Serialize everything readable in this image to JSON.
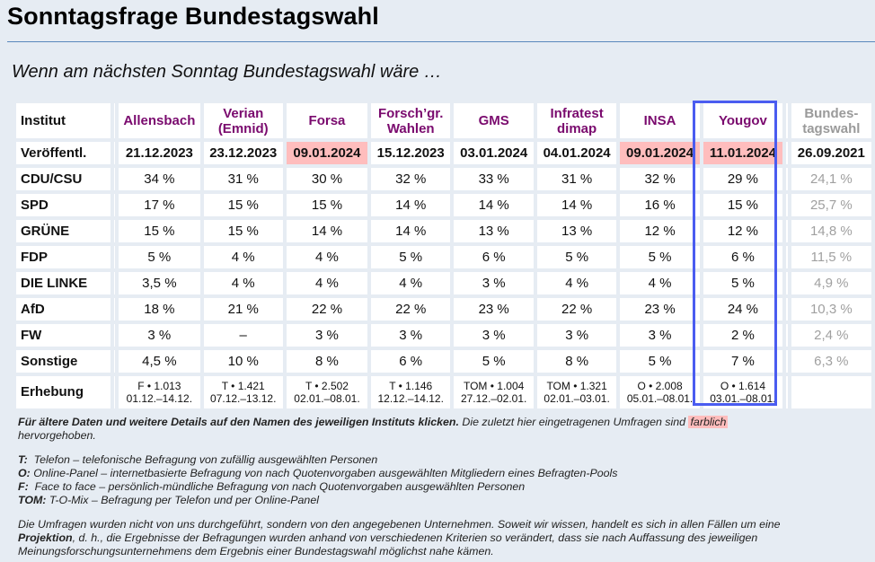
{
  "title": "Sonntagsfrage Bundestagswahl",
  "subtitle": "Wenn am nächsten Sonntag Bundestagswahl wäre …",
  "table": {
    "corner_label": "Institut",
    "date_label": "Veröffentl.",
    "survey_label": "Erhebung",
    "institutes": [
      {
        "name": "Allensbach",
        "date": "21.12.2023",
        "highlight": false,
        "method": "F • 1.013",
        "period": "01.12.–14.12."
      },
      {
        "name": "Verian (Emnid)",
        "line1": "Verian",
        "line2": "(Emnid)",
        "date": "23.12.2023",
        "highlight": false,
        "method": "T • 1.421",
        "period": "07.12.–13.12."
      },
      {
        "name": "Forsa",
        "date": "09.01.2024",
        "highlight": true,
        "method": "T • 2.502",
        "period": "02.01.–08.01."
      },
      {
        "name": "Forsch'gr. Wahlen",
        "line1": "Forsch’gr.",
        "line2": "Wahlen",
        "date": "15.12.2023",
        "highlight": false,
        "method": "T • 1.146",
        "period": "12.12.–14.12."
      },
      {
        "name": "GMS",
        "date": "03.01.2024",
        "highlight": false,
        "method": "TOM • 1.004",
        "period": "27.12.–02.01."
      },
      {
        "name": "Infratest dimap",
        "line1": "Infratest",
        "line2": "dimap",
        "date": "04.01.2024",
        "highlight": false,
        "method": "TOM • 1.321",
        "period": "02.01.–03.01."
      },
      {
        "name": "INSA",
        "date": "09.01.2024",
        "highlight": true,
        "method": "O • 2.008",
        "period": "05.01.–08.01."
      },
      {
        "name": "Yougov",
        "date": "11.01.2024",
        "highlight": true,
        "method": "O • 1.614",
        "period": "03.01.–08.01.",
        "selected": true
      }
    ],
    "election": {
      "line1": "Bundes-",
      "line2": "tagswahl",
      "date": "26.09.2021"
    },
    "parties": [
      {
        "name": "CDU/CSU",
        "values": [
          "34 %",
          "31 %",
          "30 %",
          "32 %",
          "33 %",
          "31 %",
          "32 %",
          "29 %"
        ],
        "election": "24,1 %"
      },
      {
        "name": "SPD",
        "values": [
          "17 %",
          "15 %",
          "15 %",
          "14 %",
          "14 %",
          "14 %",
          "16 %",
          "15 %"
        ],
        "election": "25,7 %"
      },
      {
        "name": "GRÜNE",
        "values": [
          "15 %",
          "15 %",
          "14 %",
          "14 %",
          "13 %",
          "13 %",
          "12 %",
          "12 %"
        ],
        "election": "14,8 %"
      },
      {
        "name": "FDP",
        "values": [
          "5 %",
          "4 %",
          "4 %",
          "5 %",
          "6 %",
          "5 %",
          "5 %",
          "6 %"
        ],
        "election": "11,5 %"
      },
      {
        "name": "DIE LINKE",
        "values": [
          "3,5 %",
          "4 %",
          "4 %",
          "4 %",
          "3 %",
          "4 %",
          "4 %",
          "5 %"
        ],
        "election": "4,9 %"
      },
      {
        "name": "AfD",
        "values": [
          "18 %",
          "21 %",
          "22 %",
          "22 %",
          "23 %",
          "22 %",
          "23 %",
          "24 %"
        ],
        "election": "10,3 %"
      },
      {
        "name": "FW",
        "values": [
          "3 %",
          "–",
          "3 %",
          "3 %",
          "3 %",
          "3 %",
          "3 %",
          "2 %"
        ],
        "election": "2,4 %"
      },
      {
        "name": "Sonstige",
        "values": [
          "4,5 %",
          "10 %",
          "8 %",
          "6 %",
          "5 %",
          "8 %",
          "5 %",
          "7 %"
        ],
        "election": "6,3 %"
      }
    ]
  },
  "notes": {
    "intro_bold": "Für ältere Daten und weitere Details auf den Namen des jeweiligen Instituts klicken.",
    "intro_rest": " Die zuletzt hier eingetragenen Umfragen sind ",
    "intro_marked": "farblich",
    "intro_end": "hervorgehoben.",
    "legend": [
      {
        "key": "T:",
        "text": "Telefon – telefonische Befragung von zufällig ausgewählten Personen"
      },
      {
        "key": "O:",
        "text": "Online-Panel – internetbasierte Befragung von nach Quotenvorgaben ausgewählten Mitgliedern eines Befragten-Pools"
      },
      {
        "key": "F:",
        "text": "Face to face – persönlich-mündliche Befragung von nach Quotenvorgaben ausgewählten Personen"
      },
      {
        "key": "TOM:",
        "text": "T-O-Mix – Befragung per Telefon und per Online-Panel"
      }
    ],
    "disclaimer_1": "Die Umfragen wurden nicht von uns durchgeführt, sondern von den angegebenen Unternehmen. Soweit wir wissen, handelt es sich in allen Fällen um eine",
    "disclaimer_bold": "Projektion",
    "disclaimer_2": ", d. h., die Ergebnisse der Befragungen wurden anhand von verschiedenen Kriterien so verändert, dass sie nach Auffassung des jeweiligen Meinungsforschungsunternehmens dem Ergebnis einer Bundestagswahl möglichst nahe kämen."
  },
  "colors": {
    "institute_link": "#7a0a6e",
    "highlight": "#ffbdbd",
    "selected_frame": "#4a5cf0",
    "election_text": "#a0a0a0",
    "background": "#e6ecf3"
  }
}
